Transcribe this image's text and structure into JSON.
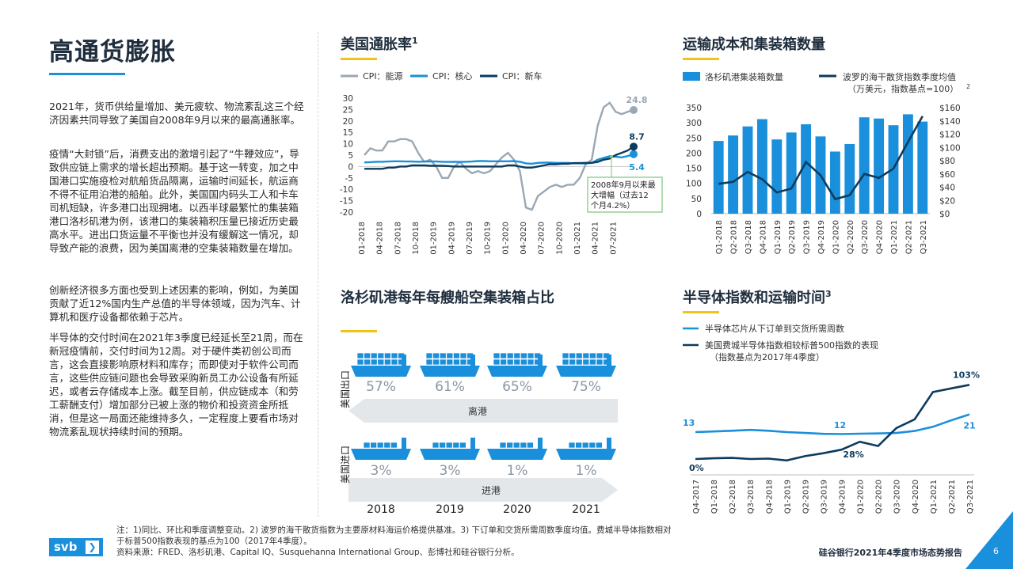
{
  "page_title": "高通货膨胀",
  "paragraphs": [
    "2021年，货币供给量增加、美元疲软、物流紊乱这三个经济因素共同导致了美国自2008年9月以来的最高通胀率。",
    "疫情“大封锁”后，消费支出的激增引起了“牛鞭效应”，导致供应链上需求的增长超出预期。基于这一转变，加之中国港口实施疫检对航船货品隔离，运输时间延长，航运商不得不征用泊港的船舶。此外，美国国内码头工人和卡车司机短缺，许多港口出现拥堵。以西半球最繁忙的集装箱港口洛杉矶港为例，该港口的集装箱积压量已接近历史最高水平。进出口货运量不平衡也并没有缓解这一情况，却导致产能的浪费，因为美国离港的空集装箱数量在增加。",
    "创新经济很多方面也受到上述因素的影响，例如，为美国贡献了近12%国内生产总值的半导体领域，因为汽车、计算机和医疗设备都依赖于芯片。",
    "半导体的交付时间在2021年3季度已经延长至21周，而在新冠疫情前，交付时间为12周。对于硬件类初创公司而言，这会直接影响原材料和库存；而即使对于软件公司而言，这些供应链问题也会导致采购新员工办公设备有所延迟，或者云存储成本上涨。截至目前，供应链成本（和劳工薪酬支付）增加部分已被上涨的物价和投资资金所抵消，但是这一局面还能维持多久，一定程度上要看市场对物流紊乱现状持续时间的预期。"
  ],
  "footnote": {
    "line1": "注：1)同比、环比和季度调整变动。2) 波罗的海干散货指数为主要原材料海运价格提供基准。3) 下订单和交货所需周数季度均值。费城半导体指数相对",
    "line2": "于标普500指数表现的基点为100（2017年4季度）。",
    "line3": "资料来源：FRED、洛杉矶港、Capital IQ、Susquehanna International Group、彭博社和硅谷银行分析。"
  },
  "report_name": "硅谷银行2021年4季度市场态势报告",
  "page_number": "6",
  "logo_text": "svb",
  "logo_chevron": "❯",
  "colors": {
    "blue": "#1a8fdb",
    "navy": "#0d3b5e",
    "gray": "#9aa7b4",
    "yellow": "#f2c21b",
    "green": "#7dc47a"
  },
  "chart_data": [
    {
      "type": "line",
      "title": "美国通胀率",
      "title_sup": "1",
      "x_ticks": [
        "01-2018",
        "04-2018",
        "07-2018",
        "10-2018",
        "01-2019",
        "04-2019",
        "07-2019",
        "10-2019",
        "01-2020",
        "04-2020",
        "07-2020",
        "10-2020",
        "01-2021",
        "04-2021",
        "07-2021"
      ],
      "ylim": [
        -20,
        30
      ],
      "y_ticks": [
        30,
        25,
        20,
        15,
        10,
        5,
        0,
        -5,
        -10,
        -15,
        -20
      ],
      "series": [
        {
          "name": "CPI：能源",
          "color": "#9aa7b4",
          "end_label": "24.8",
          "values": [
            5,
            8,
            7,
            7,
            11,
            11,
            12,
            12,
            11,
            6,
            2,
            3,
            0,
            -5,
            -5,
            0,
            2,
            -1,
            -3,
            -2,
            -3,
            -2,
            1,
            4,
            6,
            3,
            -2,
            -18,
            -19,
            -13,
            -11,
            -9,
            -8,
            -9,
            -8,
            -8,
            -5,
            1,
            3,
            18,
            26,
            28,
            24,
            23,
            24,
            24.8
          ]
        },
        {
          "name": "CPI：核心",
          "color": "#1a8fdb",
          "end_label": "5.4",
          "values": [
            1.8,
            1.9,
            2.1,
            2.1,
            2.2,
            2.3,
            2.3,
            2.2,
            2.2,
            2.1,
            2.2,
            2.2,
            2.2,
            2.1,
            2.0,
            2.1,
            2.0,
            2.1,
            2.2,
            2.4,
            2.4,
            2.3,
            2.3,
            2.3,
            2.3,
            2.4,
            2.1,
            1.4,
            1.2,
            1.6,
            1.7,
            1.7,
            1.6,
            1.6,
            1.6,
            1.4,
            1.4,
            1.3,
            1.6,
            3.0,
            3.8,
            4.5,
            4.3,
            4.0,
            4.6,
            5.4
          ]
        },
        {
          "name": "CPI：新车",
          "color": "#0d3b5e",
          "end_label": "8.7",
          "values": [
            -1,
            -1,
            -1,
            -1,
            -0.5,
            -0.5,
            0,
            0,
            0.5,
            0.5,
            0.5,
            0.3,
            0.3,
            0.3,
            0.2,
            0,
            0,
            0,
            0,
            0,
            0,
            0,
            0,
            0,
            0.5,
            0.5,
            0,
            -0.5,
            -0.5,
            0,
            0.5,
            1,
            1,
            1.2,
            1.2,
            1.5,
            1.5,
            1.6,
            1.6,
            2,
            3,
            3.5,
            5,
            6,
            7,
            8.7
          ]
        }
      ],
      "annotation": {
        "lines": [
          "2008年9月以来最",
          "大增幅（过去12",
          "个月4.2%）"
        ]
      }
    },
    {
      "type": "bar+line",
      "title": "运输成本和集装箱数量",
      "categories": [
        "Q1-2018",
        "Q2-2018",
        "Q3-2018",
        "Q4-2018",
        "Q1-2019",
        "Q2-2019",
        "Q3-2019",
        "Q4-2019",
        "Q1-2020",
        "Q2-2020",
        "Q3-2020",
        "Q4-2020",
        "Q1-2021",
        "Q2-2021",
        "Q3-2021"
      ],
      "left_ylim": [
        0,
        350
      ],
      "left_ticks": [
        350,
        300,
        250,
        200,
        150,
        100,
        50,
        0
      ],
      "right_ylim": [
        0,
        160
      ],
      "right_ticks": [
        "$160",
        "$140",
        "$120",
        "$100",
        "$80",
        "$60",
        "$40",
        "$20",
        "$0"
      ],
      "bar_series": {
        "name": "洛杉矶港集装箱数量",
        "color": "#1a8fdb",
        "values": [
          240,
          258,
          288,
          312,
          245,
          268,
          295,
          255,
          205,
          230,
          318,
          314,
          292,
          328,
          304
        ]
      },
      "line_series": {
        "name": "波罗的海干散货指数季度均值",
        "name_line2": "（万美元，指数基点=100）",
        "name_sup": "2",
        "color": "#0d3b5e",
        "values": [
          45,
          48,
          63,
          52,
          32,
          38,
          78,
          58,
          22,
          28,
          60,
          54,
          68,
          108,
          147
        ]
      }
    },
    {
      "type": "pictogram",
      "title": "洛杉矶港每年每艘船空集装箱占比",
      "years": [
        "2018",
        "2019",
        "2020",
        "2021"
      ],
      "export_label": "美国出口",
      "import_label": "美国进口",
      "export_values": [
        "57%",
        "61%",
        "65%",
        "75%"
      ],
      "import_values": [
        "3%",
        "3%",
        "1%",
        "1%"
      ],
      "export_arrow_label": "离港",
      "import_arrow_label": "进港"
    },
    {
      "type": "line",
      "title": "半导体指数和运输时间",
      "title_sup": "3",
      "categories": [
        "Q4-2017",
        "Q1-2018",
        "Q2-2018",
        "Q3-2018",
        "Q4-2018",
        "Q1-2019",
        "Q2-2019",
        "Q3-2019",
        "Q4-2019",
        "Q1-2020",
        "Q2-2020",
        "Q3-2020",
        "Q4-2020",
        "Q1-2021",
        "Q2-2021",
        "Q3-2021"
      ],
      "series": [
        {
          "name": "半导体芯片从下订单到交货所需周数",
          "color": "#1a8fdb",
          "values": [
            13,
            13.3,
            13.6,
            14,
            13.6,
            13,
            12.6,
            12.2,
            12.1,
            12.3,
            12.4,
            12.6,
            13.5,
            15.4,
            18.3,
            21
          ],
          "labels": {
            "first": "13",
            "mid": "12",
            "last": "21"
          }
        },
        {
          "name": "美国费城半导体指数相较标普500指数的表现",
          "name_line2": "（指数基点为2017年4季度）",
          "color": "#0d3b5e",
          "values": [
            0,
            1,
            1.5,
            0,
            0.5,
            -2,
            4,
            8,
            13,
            24,
            18,
            43,
            55,
            93,
            98,
            103
          ],
          "labels": {
            "first": "0%",
            "mid": "28%",
            "last": "103%"
          }
        }
      ]
    }
  ]
}
